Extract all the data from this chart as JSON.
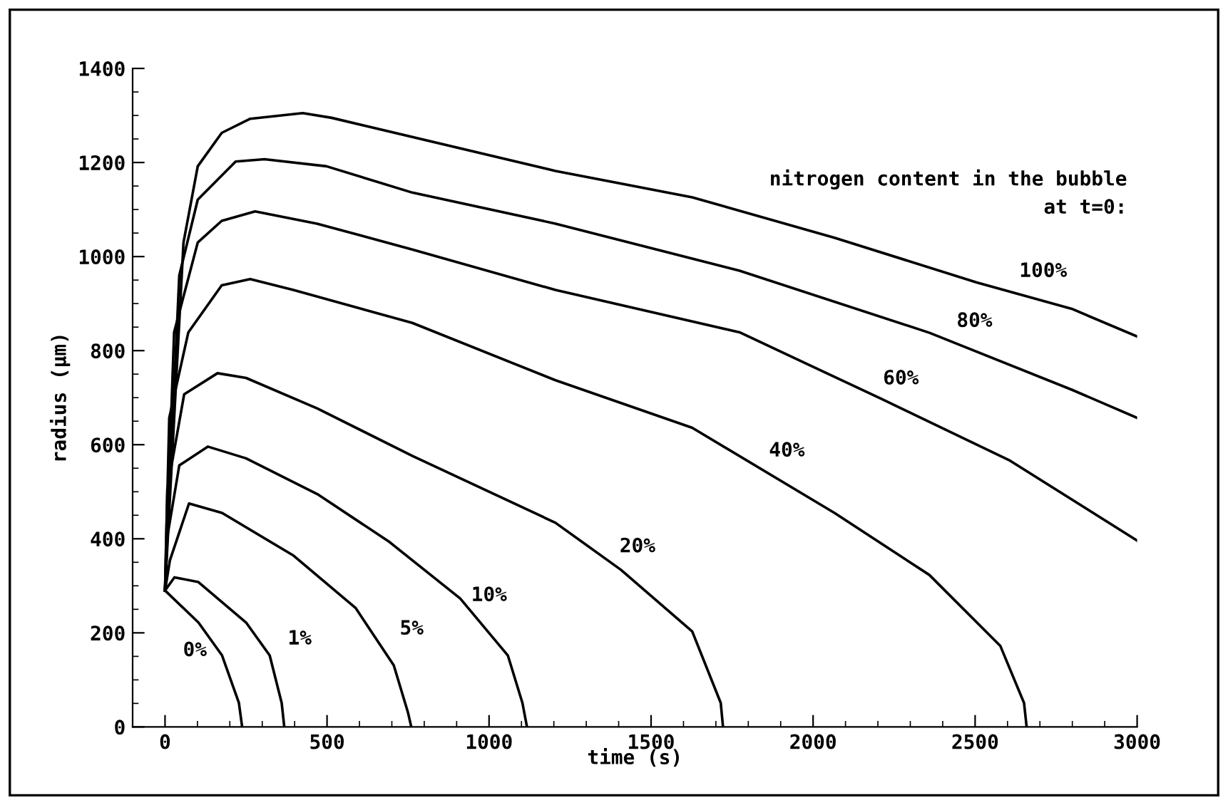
{
  "chart_data": {
    "type": "line",
    "xlabel": "time (s)",
    "ylabel": "radius (µm)",
    "xlim": [
      -100,
      3000
    ],
    "xticks": [
      0,
      500,
      1000,
      1500,
      2000,
      2500,
      3000
    ],
    "ylim": [
      0,
      1400
    ],
    "yticks": [
      0,
      200,
      400,
      600,
      800,
      1000,
      1200,
      1400
    ],
    "grid": false,
    "legend": false,
    "line_style": "solid",
    "marker": "none",
    "series": [
      {
        "name": "100%",
        "color": "#000000",
        "x": [
          0,
          57,
          101,
          175,
          263,
          425,
          514,
          1205,
          1627,
          2066,
          2505,
          2798,
          3000
        ],
        "values": [
          290,
          1030,
          1192,
          1263,
          1293,
          1305,
          1295,
          1182,
          1126,
          1040,
          945,
          889,
          830
        ]
      },
      {
        "name": "80%",
        "color": "#000000",
        "x": [
          0,
          44,
          101,
          218,
          307,
          498,
          763,
          1205,
          1773,
          2359,
          2798,
          3000
        ],
        "values": [
          290,
          960,
          1121,
          1202,
          1207,
          1192,
          1136,
          1070,
          970,
          838,
          717,
          657
        ]
      },
      {
        "name": "60%",
        "color": "#000000",
        "x": [
          0,
          28,
          101,
          175,
          278,
          469,
          763,
          1205,
          1773,
          2212,
          2608,
          3000
        ],
        "values": [
          290,
          839,
          1030,
          1076,
          1096,
          1070,
          1015,
          929,
          839,
          697,
          566,
          396
        ]
      },
      {
        "name": "40%",
        "color": "#000000",
        "x": [
          0,
          13,
          72,
          175,
          263,
          396,
          763,
          1205,
          1627,
          2066,
          2359,
          2578,
          2651,
          2659
        ],
        "values": [
          290,
          657,
          839,
          939,
          952,
          929,
          859,
          737,
          636,
          455,
          323,
          172,
          51,
          0
        ]
      },
      {
        "name": "20%",
        "color": "#000000",
        "x": [
          0,
          7,
          59,
          162,
          250,
          470,
          764,
          1205,
          1407,
          1627,
          1715,
          1722
        ],
        "values": [
          290,
          505,
          707,
          752,
          742,
          677,
          576,
          434,
          334,
          203,
          51,
          0
        ]
      },
      {
        "name": "10%",
        "color": "#000000",
        "x": [
          0,
          7,
          44,
          132,
          250,
          470,
          691,
          911,
          1058,
          1103,
          1117
        ],
        "values": [
          290,
          404,
          556,
          596,
          571,
          495,
          394,
          273,
          152,
          51,
          0
        ]
      },
      {
        "name": "5%",
        "color": "#000000",
        "x": [
          0,
          15,
          74,
          176,
          397,
          588,
          706,
          750,
          760
        ],
        "values": [
          290,
          354,
          475,
          455,
          364,
          253,
          131,
          30,
          0
        ]
      },
      {
        "name": "1%",
        "color": "#000000",
        "x": [
          0,
          29,
          103,
          250,
          323,
          360,
          368
        ],
        "values": [
          290,
          318,
          308,
          222,
          152,
          51,
          0
        ]
      },
      {
        "name": "0%",
        "color": "#000000",
        "x": [
          0,
          103,
          176,
          228,
          238
        ],
        "values": [
          290,
          222,
          152,
          51,
          0
        ]
      }
    ],
    "annotations": [
      "nitrogen content in the bubble\nat t=0:"
    ]
  }
}
